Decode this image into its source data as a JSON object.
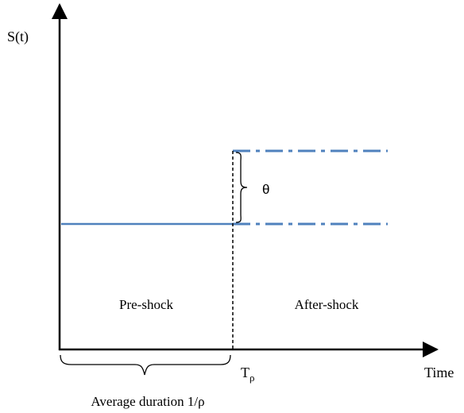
{
  "y_axis_label": "S(t)",
  "x_axis_label": "Time",
  "jump_label": "θ",
  "pre_region_label": "Pre-shock",
  "post_region_label": "After-shock",
  "shock_time_label": {
    "base": "T",
    "subscript": "ρ"
  },
  "duration_label": "Average duration 1/ρ",
  "colors": {
    "axes": "#000000",
    "level_line": "#4f81bd",
    "shock_marker": "#000000"
  },
  "line_styles": {
    "pre_shock_level": "solid",
    "after_shock_levels": "dash-dot",
    "shock_marker": "dashed"
  }
}
